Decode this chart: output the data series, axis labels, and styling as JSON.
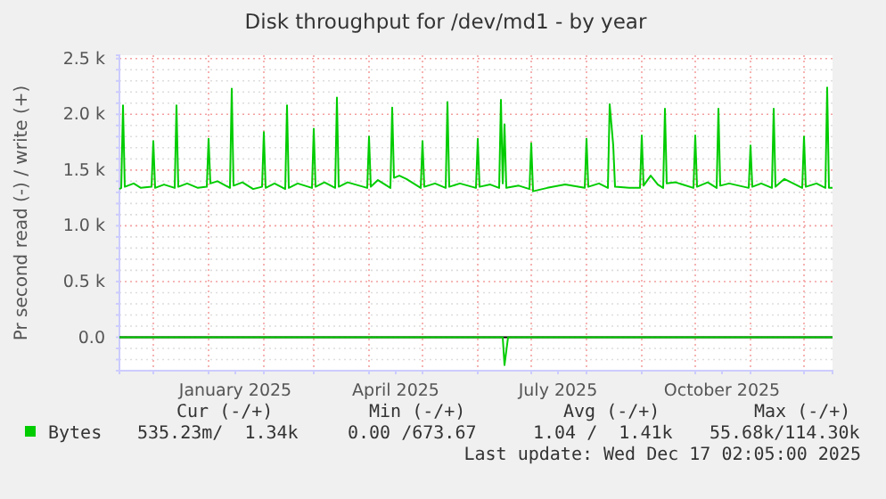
{
  "chart_data": {
    "type": "line",
    "title": "Disk throughput for /dev/md1 - by year",
    "ylabel": "Pr second read (-) / write (+)",
    "xlim": [
      "2024-11-12",
      "2025-12-17"
    ],
    "xticks": [
      {
        "value": "2024-12-01",
        "label": null
      },
      {
        "value": "2025-01-01",
        "label": null
      },
      {
        "value": "2025-01-16",
        "label": "January 2025"
      },
      {
        "value": "2025-02-01",
        "label": null
      },
      {
        "value": "2025-03-01",
        "label": null
      },
      {
        "value": "2025-04-01",
        "label": null
      },
      {
        "value": "2025-04-16",
        "label": "April 2025"
      },
      {
        "value": "2025-05-01",
        "label": null
      },
      {
        "value": "2025-06-01",
        "label": null
      },
      {
        "value": "2025-07-01",
        "label": null
      },
      {
        "value": "2025-07-16",
        "label": "July 2025"
      },
      {
        "value": "2025-08-01",
        "label": null
      },
      {
        "value": "2025-09-01",
        "label": null
      },
      {
        "value": "2025-10-01",
        "label": null
      },
      {
        "value": "2025-10-16",
        "label": "October 2025"
      },
      {
        "value": "2025-11-01",
        "label": null
      },
      {
        "value": "2025-12-01",
        "label": null
      }
    ],
    "ylim": [
      -300,
      2530
    ],
    "yticks": [
      {
        "value": -200,
        "label": null
      },
      {
        "value": -100,
        "label": null
      },
      {
        "value": 0,
        "label": "0.0"
      },
      {
        "value": 100,
        "label": null
      },
      {
        "value": 200,
        "label": null
      },
      {
        "value": 300,
        "label": null
      },
      {
        "value": 400,
        "label": null
      },
      {
        "value": 500,
        "label": "0.5 k"
      },
      {
        "value": 600,
        "label": null
      },
      {
        "value": 700,
        "label": null
      },
      {
        "value": 800,
        "label": null
      },
      {
        "value": 900,
        "label": null
      },
      {
        "value": 1000,
        "label": "1.0 k"
      },
      {
        "value": 1100,
        "label": null
      },
      {
        "value": 1200,
        "label": null
      },
      {
        "value": 1300,
        "label": null
      },
      {
        "value": 1400,
        "label": null
      },
      {
        "value": 1500,
        "label": "1.5 k"
      },
      {
        "value": 1600,
        "label": null
      },
      {
        "value": 1700,
        "label": null
      },
      {
        "value": 1800,
        "label": null
      },
      {
        "value": 1900,
        "label": null
      },
      {
        "value": 2000,
        "label": "2.0 k"
      },
      {
        "value": 2100,
        "label": null
      },
      {
        "value": 2200,
        "label": null
      },
      {
        "value": 2300,
        "label": null
      },
      {
        "value": 2400,
        "label": null
      },
      {
        "value": 2500,
        "label": "2.5 k"
      }
    ],
    "grid": true,
    "legend": "bottom left",
    "marker": "none",
    "line_style": "solid",
    "ref_lines": [
      {
        "axis": "y",
        "value": 0,
        "label": null,
        "color": "#000000"
      }
    ],
    "series": [
      {
        "name": "Bytes",
        "color": "#00cc00",
        "x": [
          "2024-11-12",
          "2024-11-13",
          "2024-11-14",
          "2024-11-15",
          "2024-11-20",
          "2024-11-24",
          "2024-11-30",
          "2024-12-01",
          "2024-12-02",
          "2024-12-07",
          "2024-12-13",
          "2024-12-14",
          "2024-12-15",
          "2024-12-20",
          "2024-12-26",
          "2024-12-31",
          "2025-01-01",
          "2025-01-02",
          "2025-01-06",
          "2025-01-13",
          "2025-01-14",
          "2025-01-15",
          "2025-01-20",
          "2025-01-26",
          "2025-01-31",
          "2025-02-01",
          "2025-02-02",
          "2025-02-07",
          "2025-02-13",
          "2025-02-14",
          "2025-02-15",
          "2025-02-20",
          "2025-02-28",
          "2025-03-01",
          "2025-03-02",
          "2025-03-07",
          "2025-03-13",
          "2025-03-14",
          "2025-03-15",
          "2025-03-20",
          "2025-03-31",
          "2025-04-01",
          "2025-04-02",
          "2025-04-06",
          "2025-04-13",
          "2025-04-14",
          "2025-04-15",
          "2025-04-18",
          "2025-04-22",
          "2025-04-30",
          "2025-05-01",
          "2025-05-02",
          "2025-05-08",
          "2025-05-14",
          "2025-05-15",
          "2025-05-16",
          "2025-05-22",
          "2025-05-31",
          "2025-06-01",
          "2025-06-02",
          "2025-06-08",
          "2025-06-13",
          "2025-06-14",
          "2025-06-15",
          "2025-06-16",
          "2025-06-17",
          "2025-06-24",
          "2025-06-30",
          "2025-07-01",
          "2025-07-02",
          "2025-07-10",
          "2025-07-20",
          "2025-07-31",
          "2025-08-01",
          "2025-08-02",
          "2025-08-08",
          "2025-08-13",
          "2025-08-14",
          "2025-08-16",
          "2025-08-17",
          "2025-08-25",
          "2025-08-31",
          "2025-09-01",
          "2025-09-02",
          "2025-09-06",
          "2025-09-10",
          "2025-09-13",
          "2025-09-14",
          "2025-09-15",
          "2025-09-20",
          "2025-09-30",
          "2025-10-01",
          "2025-10-02",
          "2025-10-08",
          "2025-10-13",
          "2025-10-14",
          "2025-10-15",
          "2025-10-20",
          "2025-10-31",
          "2025-11-01",
          "2025-11-02",
          "2025-11-07",
          "2025-11-13",
          "2025-11-14",
          "2025-11-15",
          "2025-11-20",
          "2025-11-30",
          "2025-12-01",
          "2025-12-02",
          "2025-12-08",
          "2025-12-13",
          "2025-12-14",
          "2025-12-15",
          "2025-12-17"
        ],
        "values": [
          1330,
          1340,
          2080,
          1350,
          1380,
          1340,
          1350,
          1760,
          1340,
          1370,
          1340,
          2080,
          1350,
          1380,
          1340,
          1350,
          1780,
          1380,
          1400,
          1340,
          2230,
          1360,
          1390,
          1330,
          1350,
          1840,
          1340,
          1380,
          1330,
          2080,
          1340,
          1380,
          1340,
          1870,
          1350,
          1390,
          1340,
          2150,
          1350,
          1390,
          1340,
          1800,
          1350,
          1410,
          1340,
          2060,
          1430,
          1450,
          1420,
          1340,
          1760,
          1350,
          1380,
          1340,
          2110,
          1350,
          1380,
          1340,
          1780,
          1350,
          1370,
          1340,
          2130,
          1380,
          1910,
          1340,
          1360,
          1330,
          1740,
          1310,
          1340,
          1370,
          1340,
          1780,
          1350,
          1380,
          1340,
          2090,
          1720,
          1350,
          1340,
          1340,
          1810,
          1360,
          1450,
          1370,
          1340,
          2050,
          1380,
          1390,
          1340,
          1810,
          1350,
          1390,
          1340,
          2050,
          1360,
          1380,
          1340,
          1720,
          1350,
          1380,
          1340,
          2050,
          1350,
          1420,
          1340,
          1800,
          1350,
          1380,
          1340,
          2240,
          1340,
          1340
        ]
      },
      {
        "color": "#00cc00",
        "x": [
          "2024-11-12",
          "2025-06-15",
          "2025-06-16",
          "2025-06-18",
          "2025-12-17"
        ],
        "values": [
          0,
          0,
          -250,
          0,
          0
        ]
      }
    ],
    "annotations": [
      "Cur (-/+)",
      "Min (-/+)",
      "Avg (-/+)",
      "Max (-/+)",
      "535.23m/  1.34k",
      "0.00 /673.67",
      "1.04 /  1.41k",
      "55.68k/114.30k",
      "Last update: Wed Dec 17 02:05:00 2025"
    ]
  }
}
